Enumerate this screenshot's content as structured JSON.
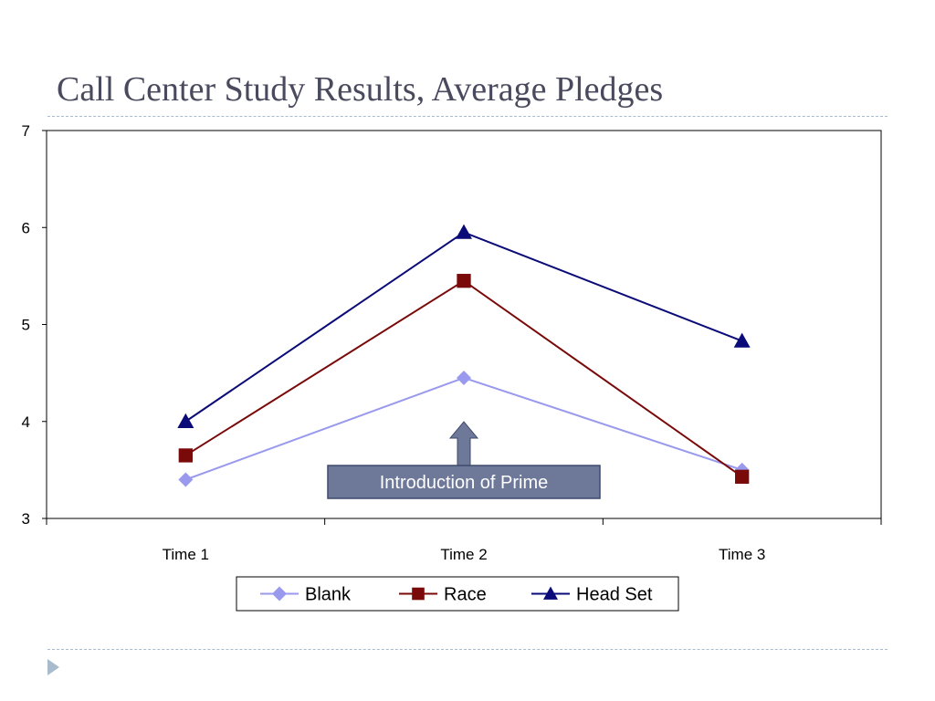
{
  "slide": {
    "title": "Call Center Study Results, Average Pledges"
  },
  "chart_data": {
    "type": "line",
    "title": "Call Center Study Results, Average Pledges",
    "xlabel": "",
    "ylabel": "",
    "categories": [
      "Time 1",
      "Time 2",
      "Time 3"
    ],
    "ylim": [
      3,
      7
    ],
    "yticks": [
      3,
      4,
      5,
      6,
      7
    ],
    "grid": false,
    "legend_position": "bottom",
    "series": [
      {
        "name": "Blank",
        "values": [
          3.4,
          4.45,
          3.5
        ],
        "color": "#9999ee",
        "marker": "diamond"
      },
      {
        "name": "Race",
        "values": [
          3.65,
          5.45,
          3.43
        ],
        "color": "#7a0a0a",
        "marker": "square"
      },
      {
        "name": "Head Set",
        "values": [
          4.0,
          5.95,
          4.83
        ],
        "color": "#0a0a78",
        "marker": "triangle"
      }
    ],
    "annotations": [
      {
        "text": "Introduction of Prime",
        "category": "Time 2",
        "arrow": "up"
      }
    ]
  },
  "colors": {
    "title": "#4a4a5e",
    "rule": "#a9bccd",
    "annotation_fill": "#6e7899",
    "annotation_border": "#3f4a6e"
  }
}
